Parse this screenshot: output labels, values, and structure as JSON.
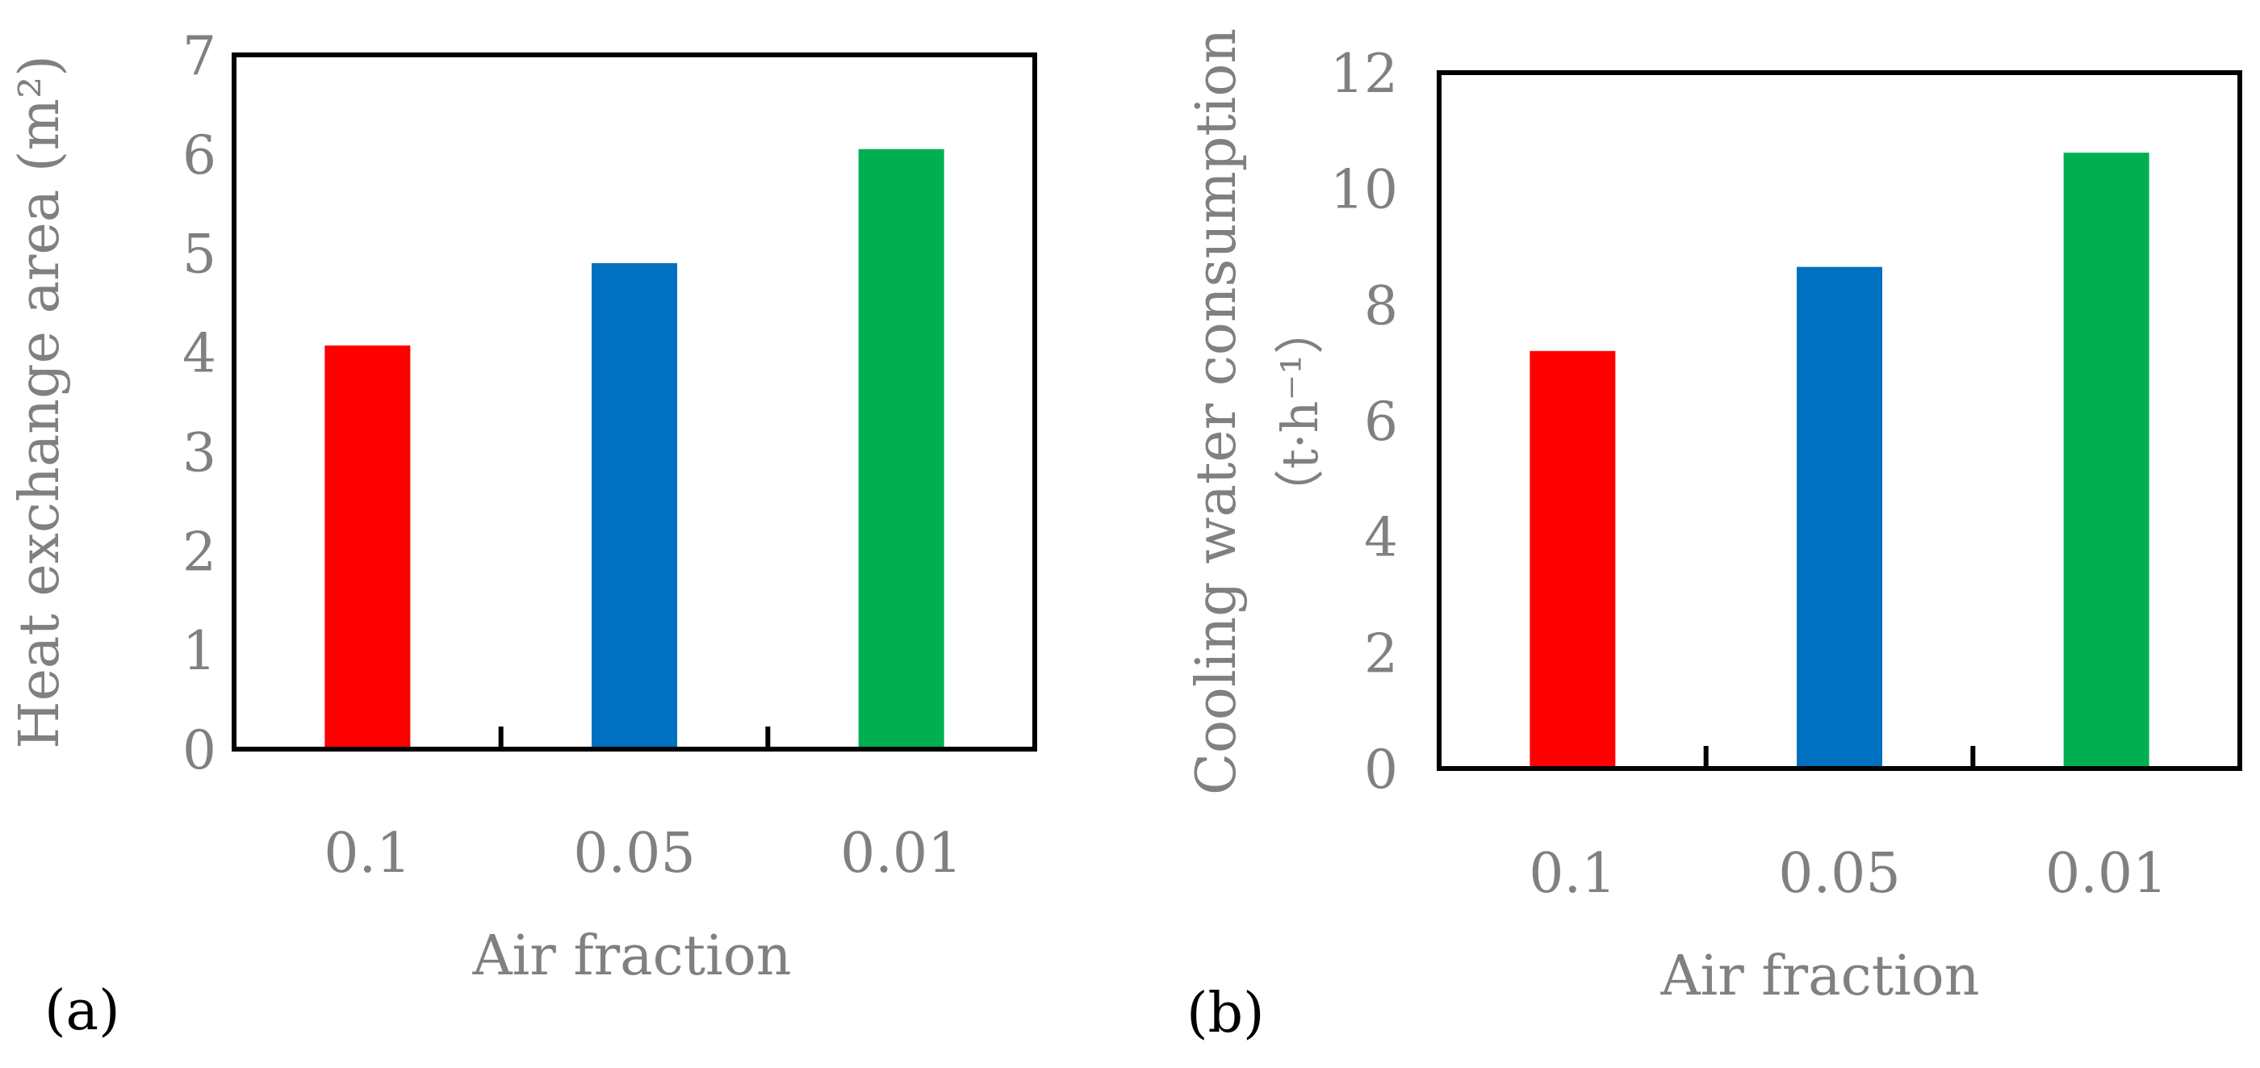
{
  "chart_data": [
    {
      "type": "bar",
      "panel_label": "(a)",
      "categories": [
        "0.1",
        "0.05",
        "0.01"
      ],
      "values": [
        4.07,
        4.9,
        6.05
      ],
      "colors": [
        "#ff0000",
        "#0070c0",
        "#00b050"
      ],
      "title": "",
      "xlabel": "Air fraction",
      "ylabel": "Heat exchange area (m²)",
      "ylabel_line2": "",
      "ylim": [
        0,
        7
      ],
      "yticks": [
        "0",
        "1",
        "2",
        "3",
        "4",
        "5",
        "6",
        "7"
      ],
      "grid": false,
      "legend": "none"
    },
    {
      "type": "bar",
      "panel_label": "(b)",
      "categories": [
        "0.1",
        "0.05",
        "0.01"
      ],
      "values": [
        7.2,
        8.65,
        10.62
      ],
      "colors": [
        "#ff0000",
        "#0070c0",
        "#00b050"
      ],
      "title": "",
      "xlabel": "Air fraction",
      "ylabel": "Cooling water consumption",
      "ylabel_line2": "（t·h⁻¹）",
      "ylim": [
        0,
        12
      ],
      "yticks": [
        "0",
        "2",
        "4",
        "6",
        "8",
        "10",
        "12"
      ],
      "grid": false,
      "legend": "none"
    }
  ],
  "style": {
    "text_color": "#808080",
    "axis_color": "#000000"
  }
}
